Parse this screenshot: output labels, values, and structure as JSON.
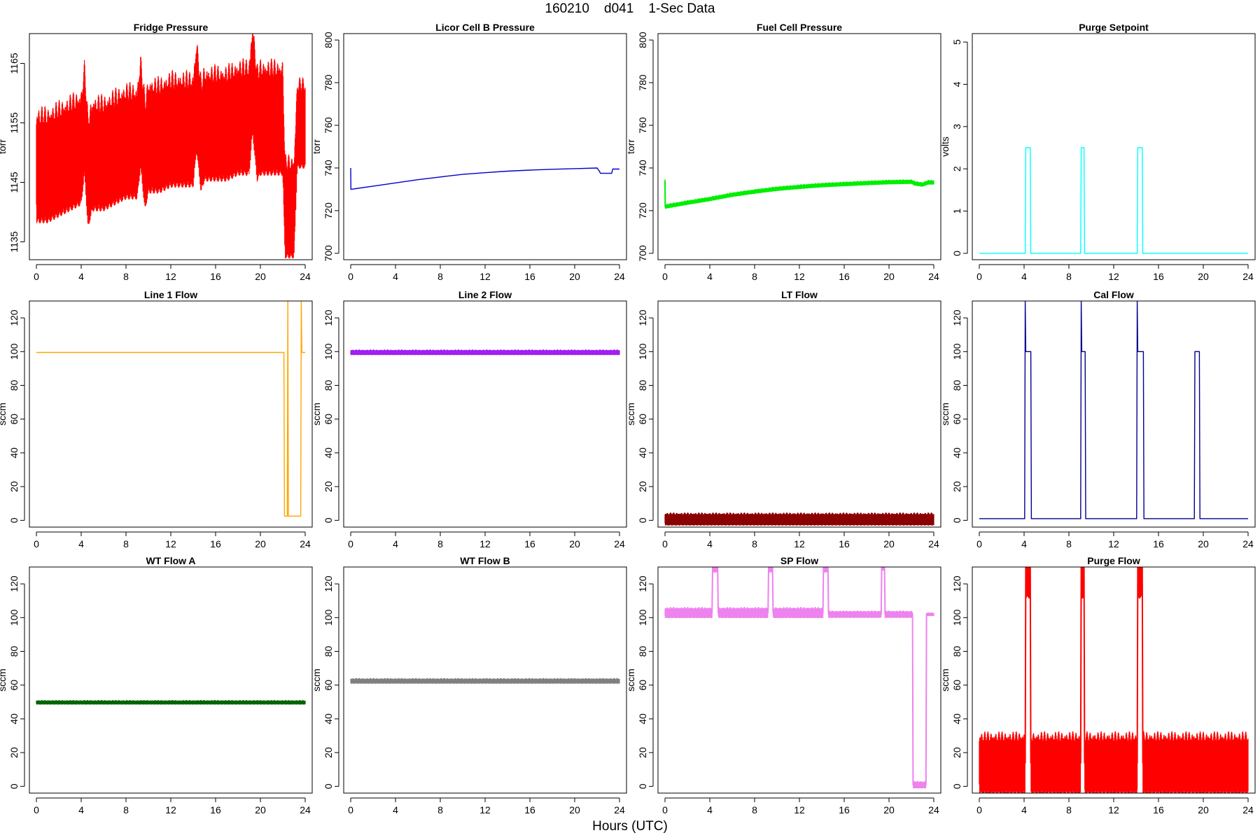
{
  "figure": {
    "title": "160210    d041    1-Sec Data",
    "xlabel": "Hours (UTC)"
  },
  "chart_data": [
    {
      "type": "line",
      "title": "Fridge Pressure",
      "ylabel": "torr",
      "xlim": [
        0,
        24
      ],
      "ylim": [
        1132,
        1170
      ],
      "xticks": [
        0,
        4,
        8,
        12,
        16,
        20,
        24
      ],
      "yticks": [
        1135,
        1145,
        1155,
        1165
      ],
      "color": "#ff0000",
      "series": [
        {
          "x": [
            0,
            1,
            2,
            3,
            4,
            4.3,
            4.6,
            5,
            6,
            7,
            8,
            9,
            9.3,
            9.7,
            10,
            11,
            12,
            13,
            14,
            14.3,
            14.7,
            15,
            16,
            17,
            18,
            19,
            19.3,
            19.7,
            20,
            21,
            22,
            22.2,
            22.6,
            23,
            23.3,
            23.6,
            24
          ],
          "y": [
            1148,
            1148,
            1149,
            1150,
            1151,
            1156,
            1147,
            1150,
            1150,
            1151,
            1152,
            1152,
            1157,
            1150,
            1153,
            1153,
            1154,
            1154,
            1154,
            1160,
            1153,
            1155,
            1155,
            1155,
            1156,
            1156,
            1163,
            1155,
            1156,
            1156,
            1156,
            1141,
            1141,
            1141,
            1155,
            1155,
            1155
          ],
          "band": [
            9,
            9,
            9,
            9,
            9,
            9,
            9,
            9,
            9,
            9,
            9,
            9,
            9,
            9,
            9,
            9,
            9,
            9,
            9,
            9,
            9,
            9,
            9,
            9,
            9,
            9,
            9,
            9,
            9,
            9,
            9,
            8,
            8,
            8,
            7,
            7,
            7
          ]
        }
      ]
    },
    {
      "type": "line",
      "title": "Licor Cell B Pressure",
      "ylabel": "torr",
      "xlim": [
        0,
        24
      ],
      "ylim": [
        697,
        803
      ],
      "xticks": [
        0,
        4,
        8,
        12,
        16,
        20,
        24
      ],
      "yticks": [
        700,
        720,
        740,
        760,
        780,
        800
      ],
      "color": "#0000cc",
      "series": [
        {
          "x": [
            0,
            0.02,
            0.05,
            2,
            4,
            6,
            8,
            10,
            12,
            14,
            16,
            18,
            20,
            22,
            22.2,
            22.3,
            23.3,
            23.4,
            24
          ],
          "y": [
            740,
            730,
            730,
            731.5,
            733,
            734.5,
            735.8,
            737,
            737.8,
            738.5,
            739,
            739.4,
            739.7,
            740,
            738.5,
            737.5,
            737.5,
            739.5,
            739.5
          ],
          "band": [
            0
          ]
        }
      ]
    },
    {
      "type": "line",
      "title": "Fuel Cell Pressure",
      "ylabel": "torr",
      "xlim": [
        0,
        24
      ],
      "ylim": [
        697,
        803
      ],
      "xticks": [
        0,
        4,
        8,
        12,
        16,
        20,
        24
      ],
      "yticks": [
        700,
        720,
        740,
        760,
        780,
        800
      ],
      "color": "#00ee00",
      "series": [
        {
          "x": [
            0,
            0.02,
            0.05,
            2,
            4,
            6,
            8,
            10,
            12,
            14,
            16,
            18,
            20,
            22,
            22.3,
            23,
            23.5,
            24
          ],
          "y": [
            734,
            722,
            722,
            723.8,
            725.5,
            727.5,
            729,
            730.3,
            731.2,
            732,
            732.5,
            733,
            733.4,
            733.6,
            732.8,
            732.3,
            733.3,
            733.3
          ],
          "band": [
            1
          ]
        }
      ]
    },
    {
      "type": "line",
      "title": "Purge Setpoint",
      "ylabel": "volts",
      "xlim": [
        0,
        24
      ],
      "ylim": [
        -0.15,
        5.2
      ],
      "xticks": [
        0,
        4,
        8,
        12,
        16,
        20,
        24
      ],
      "yticks": [
        0,
        1,
        2,
        3,
        4,
        5
      ],
      "color": "#00ffff",
      "series": [
        {
          "x": [
            0,
            4.1,
            4.15,
            4.55,
            4.6,
            9.05,
            9.1,
            9.35,
            9.4,
            14.1,
            14.15,
            14.55,
            14.6,
            24
          ],
          "y": [
            0,
            0,
            2.5,
            2.5,
            0,
            0,
            2.5,
            2.5,
            0,
            0,
            2.5,
            2.5,
            0,
            0
          ],
          "band": [
            0
          ]
        }
      ]
    },
    {
      "type": "line",
      "title": "Line 1 Flow",
      "ylabel": "sccm",
      "xlim": [
        0,
        24
      ],
      "ylim": [
        -4,
        130
      ],
      "xticks": [
        0,
        4,
        8,
        12,
        16,
        20,
        24
      ],
      "yticks": [
        0,
        20,
        40,
        60,
        80,
        100,
        120
      ],
      "color": "#ffa500",
      "series": [
        {
          "x": [
            0,
            22.1,
            22.15,
            22.2,
            22.4,
            22.45,
            22.5,
            23.6,
            23.65,
            23.7,
            24
          ],
          "y": [
            99.5,
            99.5,
            2.5,
            2.5,
            2.5,
            130,
            2.5,
            2.5,
            130,
            99.5,
            99.5
          ],
          "band": [
            0
          ]
        }
      ]
    },
    {
      "type": "line",
      "title": "Line 2 Flow",
      "ylabel": "sccm",
      "xlim": [
        0,
        24
      ],
      "ylim": [
        -4,
        130
      ],
      "xticks": [
        0,
        4,
        8,
        12,
        16,
        20,
        24
      ],
      "yticks": [
        0,
        20,
        40,
        60,
        80,
        100,
        120
      ],
      "color": "#a020f0",
      "series": [
        {
          "x": [
            0,
            24
          ],
          "y": [
            99.6,
            99.6
          ],
          "band": [
            1.5
          ]
        }
      ]
    },
    {
      "type": "line",
      "title": "LT Flow",
      "ylabel": "sccm",
      "xlim": [
        0,
        24
      ],
      "ylim": [
        -4,
        130
      ],
      "xticks": [
        0,
        4,
        8,
        12,
        16,
        20,
        24
      ],
      "yticks": [
        0,
        20,
        40,
        60,
        80,
        100,
        120
      ],
      "color": "#8b0000",
      "series": [
        {
          "x": [
            0,
            24
          ],
          "y": [
            0.8,
            0.8
          ],
          "band": [
            3.5
          ]
        }
      ]
    },
    {
      "type": "line",
      "title": "Cal Flow",
      "ylabel": "sccm",
      "xlim": [
        0,
        24
      ],
      "ylim": [
        -4,
        130
      ],
      "xticks": [
        0,
        4,
        8,
        12,
        16,
        20,
        24
      ],
      "yticks": [
        0,
        20,
        40,
        60,
        80,
        100,
        120
      ],
      "color": "#00008b",
      "series": [
        {
          "x": [
            0,
            4.05,
            4.1,
            4.15,
            4.6,
            4.65,
            9.05,
            9.1,
            9.15,
            9.45,
            9.5,
            14.05,
            14.1,
            14.15,
            14.65,
            14.7,
            19.2,
            19.25,
            19.65,
            19.7,
            24
          ],
          "y": [
            1,
            1,
            130,
            100,
            100,
            1,
            1,
            130,
            100,
            100,
            1,
            1,
            130,
            100,
            100,
            1,
            1,
            100,
            100,
            1,
            1
          ],
          "band": [
            0
          ]
        }
      ]
    },
    {
      "type": "line",
      "title": "WT Flow A",
      "ylabel": "sccm",
      "xlim": [
        0,
        24
      ],
      "ylim": [
        -4,
        130
      ],
      "xticks": [
        0,
        4,
        8,
        12,
        16,
        20,
        24
      ],
      "yticks": [
        0,
        20,
        40,
        60,
        80,
        100,
        120
      ],
      "color": "#006400",
      "series": [
        {
          "x": [
            0,
            24
          ],
          "y": [
            49.8,
            49.8
          ],
          "band": [
            1.2
          ]
        }
      ]
    },
    {
      "type": "line",
      "title": "WT Flow B",
      "ylabel": "sccm",
      "xlim": [
        0,
        24
      ],
      "ylim": [
        -4,
        130
      ],
      "xticks": [
        0,
        4,
        8,
        12,
        16,
        20,
        24
      ],
      "yticks": [
        0,
        20,
        40,
        60,
        80,
        100,
        120
      ],
      "color": "#808080",
      "series": [
        {
          "x": [
            0,
            24
          ],
          "y": [
            62.5,
            62.5
          ],
          "band": [
            1.5
          ]
        }
      ]
    },
    {
      "type": "line",
      "title": "SP Flow",
      "ylabel": "sccm",
      "xlim": [
        0,
        24
      ],
      "ylim": [
        -4,
        130
      ],
      "xticks": [
        0,
        4,
        8,
        12,
        16,
        20,
        24
      ],
      "yticks": [
        0,
        20,
        40,
        60,
        80,
        100,
        120
      ],
      "color": "#ee82ee",
      "series": [
        {
          "x": [
            0,
            4.2,
            4.25,
            4.7,
            4.75,
            9.2,
            9.25,
            9.6,
            9.65,
            14.1,
            14.15,
            14.55,
            14.6,
            19.3,
            19.35,
            19.6,
            19.65,
            22.1,
            22.15,
            23.3,
            23.35,
            24
          ],
          "y": [
            103,
            103,
            130,
            130,
            103,
            103,
            130,
            130,
            103,
            103,
            130,
            130,
            102,
            102,
            130,
            130,
            102,
            102,
            1,
            1,
            102,
            102
          ],
          "band": [
            3,
            3,
            3,
            3,
            3,
            3,
            3,
            3,
            3,
            3,
            3,
            3,
            2,
            2,
            2,
            2,
            2,
            2,
            2,
            2,
            1,
            1
          ]
        }
      ]
    },
    {
      "type": "line",
      "title": "Purge Flow",
      "ylabel": "sccm",
      "xlim": [
        0,
        24
      ],
      "ylim": [
        -4,
        130
      ],
      "xticks": [
        0,
        4,
        8,
        12,
        16,
        20,
        24
      ],
      "yticks": [
        0,
        20,
        40,
        60,
        80,
        100,
        120
      ],
      "color": "#ff0000",
      "series": [
        {
          "x": [
            0,
            4.1,
            4.15,
            4.55,
            4.6,
            9.05,
            9.1,
            9.35,
            9.4,
            14.1,
            14.15,
            14.55,
            14.6,
            24
          ],
          "y": [
            14,
            14,
            130,
            130,
            14,
            14,
            130,
            130,
            14,
            14,
            130,
            130,
            14,
            14
          ],
          "band": [
            17
          ]
        }
      ]
    }
  ]
}
